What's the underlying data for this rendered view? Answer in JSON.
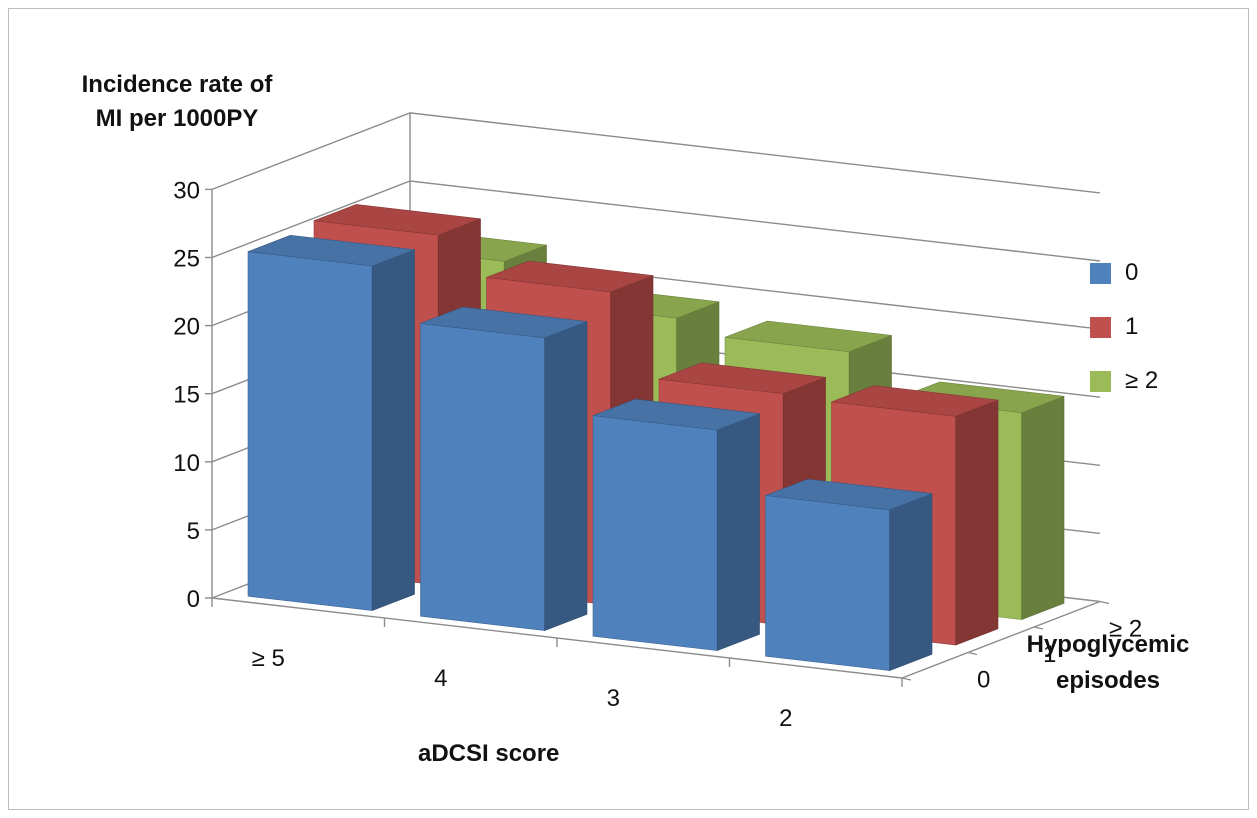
{
  "chart_data": {
    "type": "bar",
    "subtype": "3d-column",
    "ylabel_lines": [
      "Incidence rate of",
      "MI per 1000PY"
    ],
    "xlabel": "aDCSI score",
    "zlabel_lines": [
      "Hypoglycemic",
      "episodes"
    ],
    "categories": [
      "≥ 5",
      "4",
      "3",
      "2"
    ],
    "series": [
      {
        "name": "0",
        "color": "#4F81BD",
        "values": [
          25.3,
          21.5,
          16.2,
          11.8
        ]
      },
      {
        "name": "1",
        "color": "#C0504D",
        "values": [
          25.7,
          23.0,
          17.0,
          16.8
        ]
      },
      {
        "name": "≥ 2",
        "color": "#9BBB59",
        "values": [
          21.9,
          19.2,
          18.2,
          15.2
        ]
      }
    ],
    "depth_labels": [
      "0",
      "1",
      "≥ 2"
    ],
    "yticks": [
      "0",
      "5",
      "10",
      "15",
      "20",
      "25",
      "30"
    ],
    "ylim": [
      0,
      30
    ],
    "grid": true,
    "legend_position": "right"
  }
}
